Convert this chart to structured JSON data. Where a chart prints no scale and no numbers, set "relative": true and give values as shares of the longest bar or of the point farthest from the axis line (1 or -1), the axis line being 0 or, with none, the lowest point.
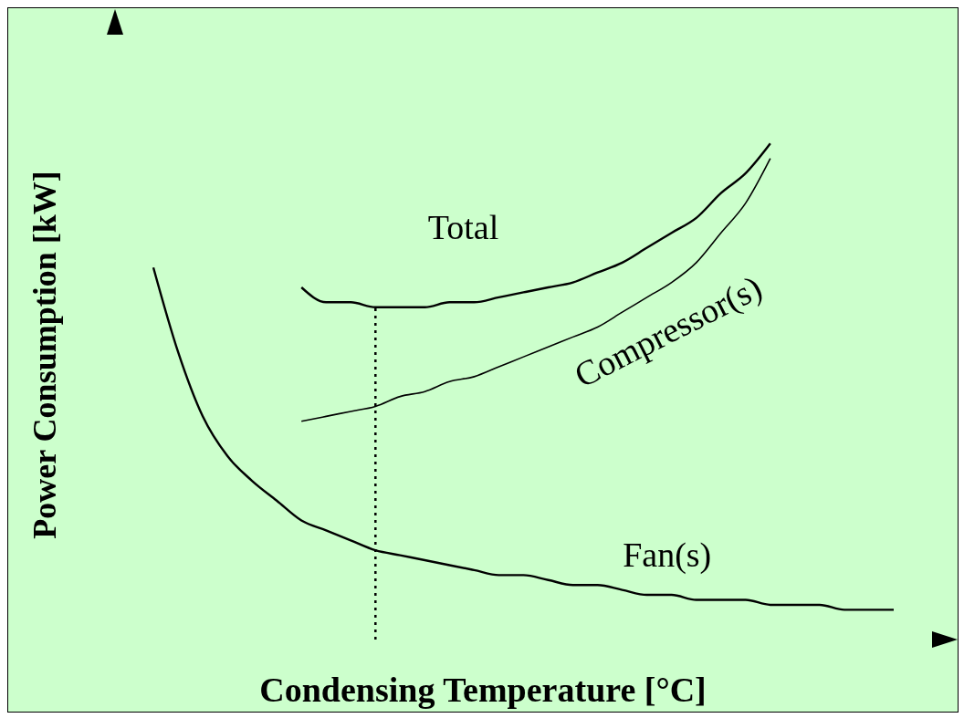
{
  "chart_data": {
    "type": "line",
    "relative": true,
    "xlabel": "Condensing Temperature [°C]",
    "ylabel": "Power Consumption [kW]",
    "categories": [
      null,
      null,
      null,
      null,
      null,
      null,
      null,
      null,
      null,
      null,
      null,
      null,
      null,
      null,
      null,
      null,
      null,
      null,
      null,
      null,
      null,
      null,
      null,
      null,
      null,
      null,
      null,
      null,
      null,
      null,
      null
    ],
    "series": [
      {
        "name": "Total",
        "color": "#000000",
        "values": [
          null,
          null,
          null,
          null,
          null,
          null,
          0.71,
          0.68,
          0.68,
          0.67,
          0.67,
          0.67,
          0.68,
          0.68,
          0.69,
          0.7,
          0.71,
          0.72,
          0.74,
          0.76,
          0.79,
          0.82,
          0.85,
          0.9,
          0.94,
          1.0,
          null,
          null,
          null,
          null,
          null
        ]
      },
      {
        "name": "Compressor(s)",
        "color": "#000000",
        "values": [
          null,
          null,
          null,
          null,
          null,
          null,
          0.44,
          0.45,
          0.46,
          0.47,
          0.49,
          0.5,
          0.52,
          0.53,
          0.55,
          0.57,
          0.59,
          0.61,
          0.63,
          0.66,
          0.69,
          0.72,
          0.76,
          0.82,
          0.88,
          0.97,
          null,
          null,
          null,
          null,
          null
        ]
      },
      {
        "name": "Fan(s)",
        "color": "#000000",
        "values": [
          0.75,
          0.58,
          0.45,
          0.37,
          0.32,
          0.28,
          0.24,
          0.22,
          0.2,
          0.18,
          0.17,
          0.16,
          0.15,
          0.14,
          0.13,
          0.13,
          0.12,
          0.11,
          0.11,
          0.1,
          0.09,
          0.09,
          0.08,
          0.08,
          0.08,
          0.07,
          0.07,
          0.07,
          0.06,
          0.06,
          0.06
        ]
      }
    ],
    "legend": false,
    "grid": false,
    "marker": "none"
  }
}
